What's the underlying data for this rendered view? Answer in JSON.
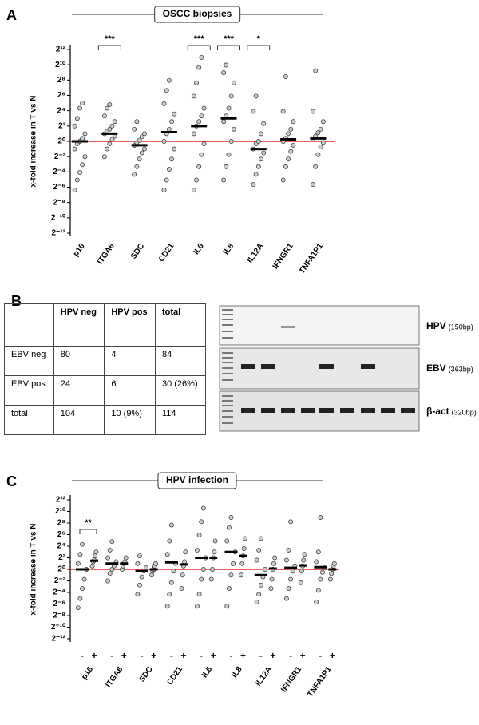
{
  "chart_data": [
    {
      "type": "dotplot",
      "panel": "A",
      "title": "OSCC biopsies",
      "y_label": "x-fold increase in T vs N",
      "log_scale": true,
      "log_base": 2,
      "hline": 1,
      "hline_color": "#e00000",
      "point_color": "#cccccc",
      "ylim": [
        0.000244140625,
        4096
      ],
      "yticks": [
        {
          "value": 4096,
          "label": "2¹²"
        },
        {
          "value": 1024,
          "label": "2¹⁰"
        },
        {
          "value": 256,
          "label": "2⁸"
        },
        {
          "value": 64,
          "label": "2⁶"
        },
        {
          "value": 16,
          "label": "2⁴"
        },
        {
          "value": 4,
          "label": "2²"
        },
        {
          "value": 1,
          "label": "2⁰"
        },
        {
          "value": 0.25,
          "label": "2⁻²"
        },
        {
          "value": 0.0625,
          "label": "2⁻⁴"
        },
        {
          "value": 0.015625,
          "label": "2⁻⁶"
        },
        {
          "value": 0.00390625,
          "label": "2⁻⁸"
        },
        {
          "value": 0.0009765625,
          "label": "2⁻¹⁰"
        },
        {
          "value": 0.000244140625,
          "label": "2⁻¹²"
        }
      ],
      "categories": [
        "p16",
        "ITGA6",
        "SDC",
        "CD21",
        "IL6",
        "IL8",
        "IL12A",
        "IFNGR1",
        "TNFA1P1"
      ],
      "significance": [
        null,
        "***",
        null,
        null,
        "***",
        "***",
        "*",
        null,
        null
      ],
      "values": [
        [
          0.012,
          0.03,
          0.06,
          0.12,
          0.25,
          0.5,
          0.8,
          1,
          1.3,
          2,
          4,
          8,
          20,
          32
        ],
        [
          0.25,
          0.5,
          0.8,
          1.2,
          1.6,
          2,
          2.5,
          3,
          4,
          6,
          10,
          20,
          28
        ],
        [
          0.05,
          0.1,
          0.2,
          0.35,
          0.5,
          0.7,
          0.9,
          1.1,
          1.5,
          2,
          3,
          6
        ],
        [
          0.012,
          0.03,
          0.08,
          0.2,
          0.5,
          1,
          2,
          3,
          6,
          12,
          30,
          100,
          250
        ],
        [
          0.012,
          0.03,
          0.1,
          0.3,
          0.8,
          2,
          4,
          6,
          10,
          20,
          60,
          200,
          800,
          2000
        ],
        [
          0.03,
          0.1,
          0.3,
          1,
          3,
          6,
          10,
          20,
          60,
          200,
          500,
          1000
        ],
        [
          0.02,
          0.05,
          0.1,
          0.2,
          0.35,
          0.5,
          0.8,
          1,
          2,
          5,
          15,
          60
        ],
        [
          0.03,
          0.1,
          0.2,
          0.4,
          0.7,
          1,
          1.3,
          2,
          3,
          6,
          15,
          350
        ],
        [
          0.02,
          0.1,
          0.3,
          0.6,
          0.9,
          1.2,
          1.6,
          2.2,
          3,
          6,
          15,
          600
        ]
      ],
      "medians": [
        1,
        2,
        0.7,
        2.3,
        4,
        8,
        0.5,
        1.2,
        1.3
      ]
    },
    {
      "type": "dotplot",
      "panel": "C",
      "title": "HPV infection",
      "y_label": "x-fold increase in T vs N",
      "log_scale": true,
      "log_base": 2,
      "hline": 1,
      "hline_color": "#e00000",
      "point_color": "#cccccc",
      "ylim": [
        0.000244140625,
        4096
      ],
      "yticks": [
        {
          "value": 4096,
          "label": "2¹²"
        },
        {
          "value": 1024,
          "label": "2¹⁰"
        },
        {
          "value": 256,
          "label": "2⁸"
        },
        {
          "value": 64,
          "label": "2⁶"
        },
        {
          "value": 16,
          "label": "2⁴"
        },
        {
          "value": 4,
          "label": "2²"
        },
        {
          "value": 1,
          "label": "2⁰"
        },
        {
          "value": 0.25,
          "label": "2⁻²"
        },
        {
          "value": 0.0625,
          "label": "2⁻⁴"
        },
        {
          "value": 0.015625,
          "label": "2⁻⁶"
        },
        {
          "value": 0.00390625,
          "label": "2⁻⁸"
        },
        {
          "value": 0.0009765625,
          "label": "2⁻¹⁰"
        },
        {
          "value": 0.000244140625,
          "label": "2⁻¹²"
        }
      ],
      "categories": [
        "p16",
        "ITGA6",
        "SDC",
        "CD21",
        "IL6",
        "IL8",
        "IL12A",
        "IFNGR1",
        "TNFA1P1"
      ],
      "significance": [
        "**",
        null,
        null,
        null,
        null,
        null,
        null,
        null,
        null
      ],
      "series": [
        {
          "name": "-",
          "values": [
            [
              0.01,
              0.03,
              0.1,
              0.3,
              1,
              2,
              6,
              20
            ],
            [
              0.25,
              0.6,
              1,
              1.5,
              2.5,
              4,
              10,
              28
            ],
            [
              0.05,
              0.15,
              0.4,
              0.8,
              1.2,
              2,
              5
            ],
            [
              0.012,
              0.05,
              0.2,
              0.8,
              2,
              6,
              30,
              200
            ],
            [
              0.012,
              0.05,
              0.3,
              1,
              4,
              10,
              60,
              300,
              1500
            ],
            [
              0.012,
              0.1,
              0.5,
              2,
              8,
              30,
              150,
              500
            ],
            [
              0.02,
              0.05,
              0.15,
              0.4,
              1,
              3,
              10,
              40
            ],
            [
              0.03,
              0.1,
              0.3,
              0.8,
              1.5,
              3,
              10,
              300
            ],
            [
              0.02,
              0.08,
              0.3,
              0.7,
              1.2,
              2.5,
              8,
              500
            ]
          ],
          "medians": [
            1,
            2,
            0.8,
            2.3,
            4,
            8,
            0.5,
            1.2,
            1.3
          ]
        },
        {
          "name": "+",
          "values": [
            [
              1.5,
              2.5,
              3,
              5,
              8
            ],
            [
              1,
              1.5,
              2,
              2.5,
              4
            ],
            [
              0.5,
              0.8,
              1,
              1.5,
              2
            ],
            [
              0.1,
              0.5,
              1.5,
              2.5,
              8
            ],
            [
              0.3,
              1,
              4,
              8,
              30
            ],
            [
              0.5,
              2,
              5,
              12,
              40
            ],
            [
              0.1,
              0.3,
              1,
              2,
              4
            ],
            [
              0.2,
              0.8,
              1.5,
              3,
              6
            ],
            [
              0.3,
              0.6,
              1,
              1.5,
              2
            ]
          ],
          "medians": [
            2.8,
            2,
            1,
            1.8,
            4,
            5,
            1.1,
            1.6,
            1
          ]
        }
      ]
    }
  ],
  "panel_b": {
    "panel": "B",
    "table": {
      "columns": [
        "HPV neg",
        "HPV pos",
        "total"
      ],
      "rows": [
        [
          "EBV neg",
          "80",
          "4",
          "84"
        ],
        [
          "EBV pos",
          "24",
          "6",
          "30 (26%)"
        ],
        [
          "total",
          "104",
          "10 (9%)",
          "114"
        ]
      ]
    },
    "gel": [
      {
        "name": "HPV",
        "size": "(150bp)"
      },
      {
        "name": "EBV",
        "size": "(363bp)"
      },
      {
        "name": "β-act",
        "size": "(320bp)"
      }
    ]
  }
}
